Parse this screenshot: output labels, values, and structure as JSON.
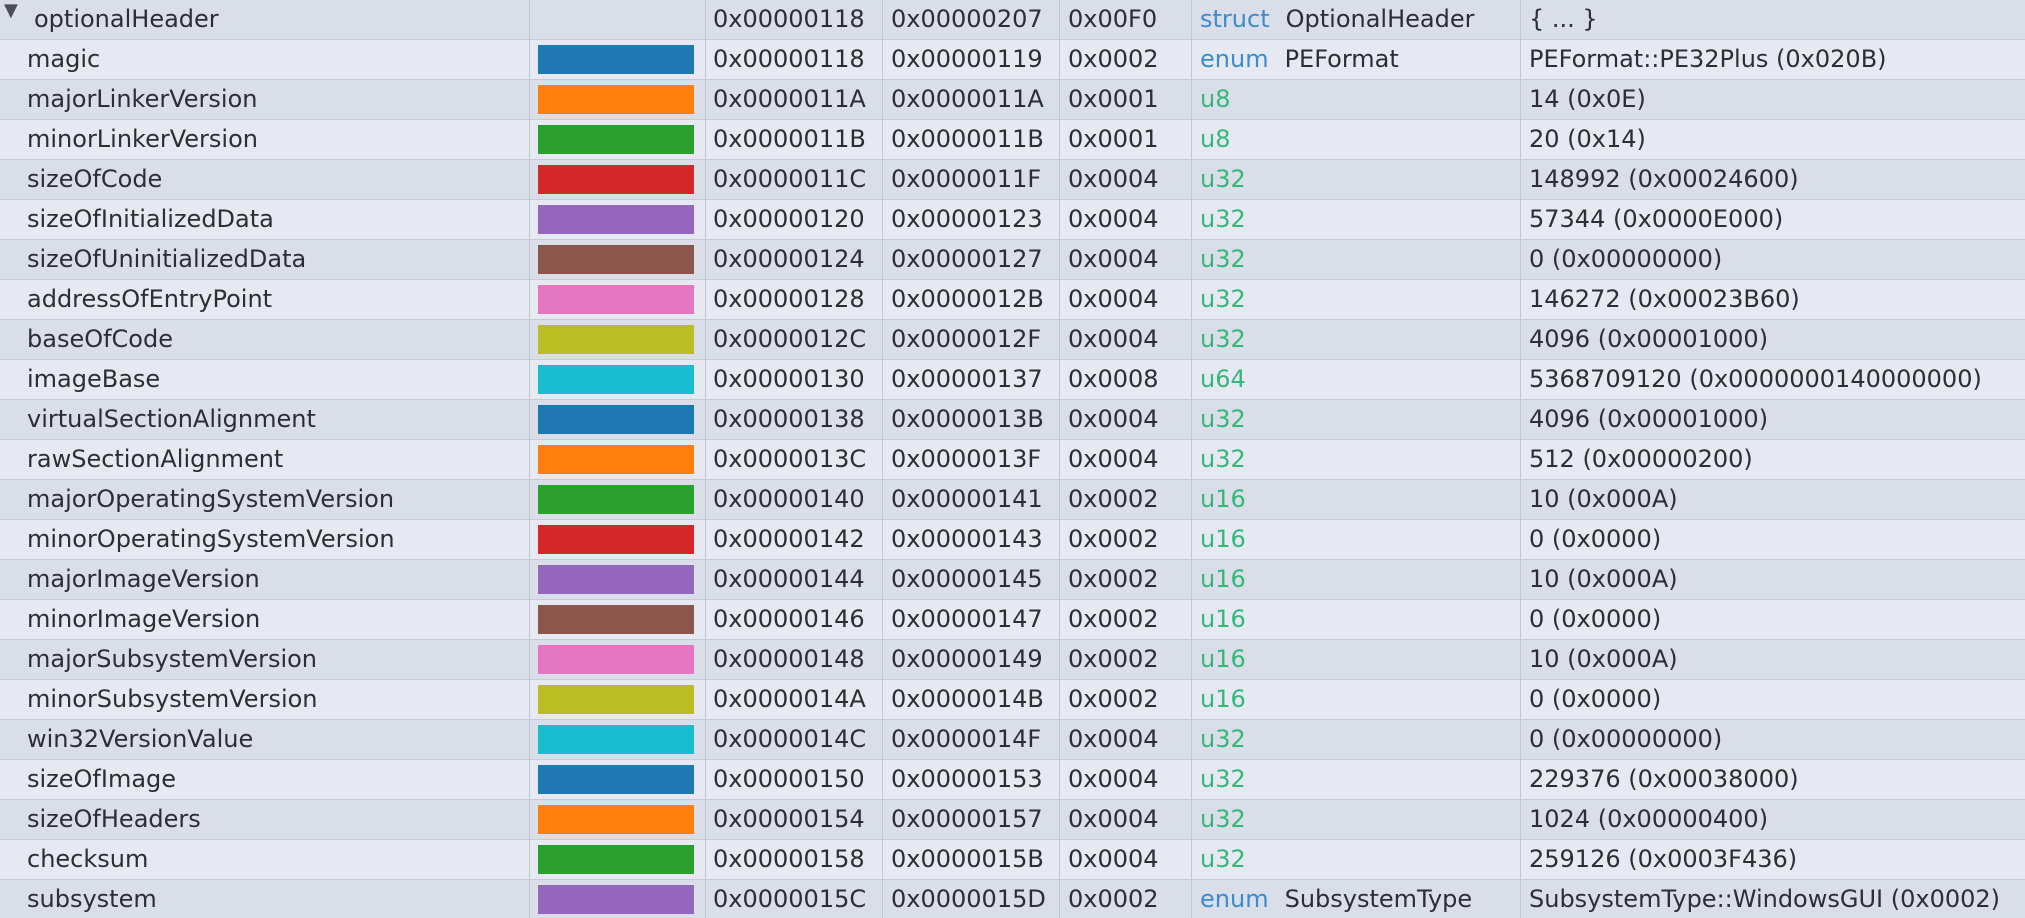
{
  "header": {
    "name": "optionalHeader",
    "start": "0x00000118",
    "end": "0x00000207",
    "size": "0x00F0",
    "type_kw": "struct",
    "type_name": "OptionalHeader",
    "value": "{ ... }",
    "expand_icon": "triangle-down-icon"
  },
  "rows": [
    {
      "name": "magic",
      "color": "#1f77b4",
      "start": "0x00000118",
      "end": "0x00000119",
      "size": "0x0002",
      "type_kw": "enum",
      "type_kw_color": "blue",
      "type_name": "PEFormat",
      "value": "PEFormat::PE32Plus (0x020B)"
    },
    {
      "name": "majorLinkerVersion",
      "color": "#ff7f0e",
      "start": "0x0000011A",
      "end": "0x0000011A",
      "size": "0x0001",
      "type_kw": "u8",
      "type_kw_color": "green",
      "type_name": "",
      "value": "14 (0x0E)"
    },
    {
      "name": "minorLinkerVersion",
      "color": "#2ca02c",
      "start": "0x0000011B",
      "end": "0x0000011B",
      "size": "0x0001",
      "type_kw": "u8",
      "type_kw_color": "green",
      "type_name": "",
      "value": "20 (0x14)"
    },
    {
      "name": "sizeOfCode",
      "color": "#d62728",
      "start": "0x0000011C",
      "end": "0x0000011F",
      "size": "0x0004",
      "type_kw": "u32",
      "type_kw_color": "green",
      "type_name": "",
      "value": "148992 (0x00024600)"
    },
    {
      "name": "sizeOfInitializedData",
      "color": "#9467bd",
      "start": "0x00000120",
      "end": "0x00000123",
      "size": "0x0004",
      "type_kw": "u32",
      "type_kw_color": "green",
      "type_name": "",
      "value": "57344 (0x0000E000)"
    },
    {
      "name": "sizeOfUninitializedData",
      "color": "#8c564b",
      "start": "0x00000124",
      "end": "0x00000127",
      "size": "0x0004",
      "type_kw": "u32",
      "type_kw_color": "green",
      "type_name": "",
      "value": "0 (0x00000000)"
    },
    {
      "name": "addressOfEntryPoint",
      "color": "#e377c2",
      "start": "0x00000128",
      "end": "0x0000012B",
      "size": "0x0004",
      "type_kw": "u32",
      "type_kw_color": "green",
      "type_name": "",
      "value": "146272 (0x00023B60)"
    },
    {
      "name": "baseOfCode",
      "color": "#bcbd22",
      "start": "0x0000012C",
      "end": "0x0000012F",
      "size": "0x0004",
      "type_kw": "u32",
      "type_kw_color": "green",
      "type_name": "",
      "value": "4096 (0x00001000)"
    },
    {
      "name": "imageBase",
      "color": "#17becf",
      "start": "0x00000130",
      "end": "0x00000137",
      "size": "0x0008",
      "type_kw": "u64",
      "type_kw_color": "green",
      "type_name": "",
      "value": "5368709120 (0x0000000140000000)"
    },
    {
      "name": "virtualSectionAlignment",
      "color": "#1f77b4",
      "start": "0x00000138",
      "end": "0x0000013B",
      "size": "0x0004",
      "type_kw": "u32",
      "type_kw_color": "green",
      "type_name": "",
      "value": "4096 (0x00001000)"
    },
    {
      "name": "rawSectionAlignment",
      "color": "#ff7f0e",
      "start": "0x0000013C",
      "end": "0x0000013F",
      "size": "0x0004",
      "type_kw": "u32",
      "type_kw_color": "green",
      "type_name": "",
      "value": "512 (0x00000200)"
    },
    {
      "name": "majorOperatingSystemVersion",
      "color": "#2ca02c",
      "start": "0x00000140",
      "end": "0x00000141",
      "size": "0x0002",
      "type_kw": "u16",
      "type_kw_color": "green",
      "type_name": "",
      "value": "10 (0x000A)"
    },
    {
      "name": "minorOperatingSystemVersion",
      "color": "#d62728",
      "start": "0x00000142",
      "end": "0x00000143",
      "size": "0x0002",
      "type_kw": "u16",
      "type_kw_color": "green",
      "type_name": "",
      "value": "0 (0x0000)"
    },
    {
      "name": "majorImageVersion",
      "color": "#9467bd",
      "start": "0x00000144",
      "end": "0x00000145",
      "size": "0x0002",
      "type_kw": "u16",
      "type_kw_color": "green",
      "type_name": "",
      "value": "10 (0x000A)"
    },
    {
      "name": "minorImageVersion",
      "color": "#8c564b",
      "start": "0x00000146",
      "end": "0x00000147",
      "size": "0x0002",
      "type_kw": "u16",
      "type_kw_color": "green",
      "type_name": "",
      "value": "0 (0x0000)"
    },
    {
      "name": "majorSubsystemVersion",
      "color": "#e377c2",
      "start": "0x00000148",
      "end": "0x00000149",
      "size": "0x0002",
      "type_kw": "u16",
      "type_kw_color": "green",
      "type_name": "",
      "value": "10 (0x000A)"
    },
    {
      "name": "minorSubsystemVersion",
      "color": "#bcbd22",
      "start": "0x0000014A",
      "end": "0x0000014B",
      "size": "0x0002",
      "type_kw": "u16",
      "type_kw_color": "green",
      "type_name": "",
      "value": "0 (0x0000)"
    },
    {
      "name": "win32VersionValue",
      "color": "#17becf",
      "start": "0x0000014C",
      "end": "0x0000014F",
      "size": "0x0004",
      "type_kw": "u32",
      "type_kw_color": "green",
      "type_name": "",
      "value": "0 (0x00000000)"
    },
    {
      "name": "sizeOfImage",
      "color": "#1f77b4",
      "start": "0x00000150",
      "end": "0x00000153",
      "size": "0x0004",
      "type_kw": "u32",
      "type_kw_color": "green",
      "type_name": "",
      "value": "229376 (0x00038000)"
    },
    {
      "name": "sizeOfHeaders",
      "color": "#ff7f0e",
      "start": "0x00000154",
      "end": "0x00000157",
      "size": "0x0004",
      "type_kw": "u32",
      "type_kw_color": "green",
      "type_name": "",
      "value": "1024 (0x00000400)"
    },
    {
      "name": "checksum",
      "color": "#2ca02c",
      "start": "0x00000158",
      "end": "0x0000015B",
      "size": "0x0004",
      "type_kw": "u32",
      "type_kw_color": "green",
      "type_name": "",
      "value": "259126 (0x0003F436)"
    },
    {
      "name": "subsystem",
      "color": "#9467bd",
      "start": "0x0000015C",
      "end": "0x0000015D",
      "size": "0x0002",
      "type_kw": "enum",
      "type_kw_color": "blue",
      "type_name": "SubsystemType",
      "value": "SubsystemType::WindowsGUI (0x0002)"
    }
  ]
}
